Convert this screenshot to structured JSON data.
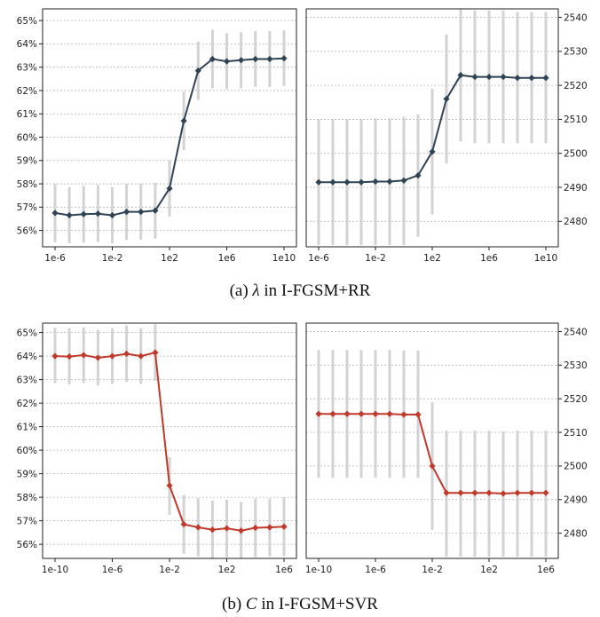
{
  "captions": {
    "a": {
      "prefix": "(a) ",
      "symbol": "λ",
      "suffix": " in I-FGSM+RR"
    },
    "b": {
      "prefix": "(b) ",
      "symbol": "C",
      "suffix": " in I-FGSM+SVR"
    }
  },
  "colors": {
    "series_a": "#2f4354",
    "series_b": "#c0392b",
    "errorbar": "#d3d3d3",
    "grid": "#b5b5b5"
  },
  "chart_data": [
    {
      "id": "a-left",
      "type": "line",
      "title": "",
      "xlabel": "",
      "ylabel": "",
      "x_log10": [
        -6,
        -5,
        -4,
        -3,
        -2,
        -1,
        0,
        1,
        2,
        3,
        4,
        5,
        6,
        7,
        8,
        9,
        10
      ],
      "x_ticks": [
        {
          "v": -6,
          "label": "1e-6"
        },
        {
          "v": -2,
          "label": "1e-2"
        },
        {
          "v": 2,
          "label": "1e2"
        },
        {
          "v": 6,
          "label": "1e6"
        },
        {
          "v": 10,
          "label": "1e10"
        }
      ],
      "y_axis": "left",
      "ylim": [
        55.3,
        65.5
      ],
      "y_ticks": [
        56,
        57,
        58,
        59,
        60,
        61,
        62,
        63,
        64,
        65
      ],
      "y_tick_labels": [
        "56%",
        "57%",
        "58%",
        "59%",
        "60%",
        "61%",
        "62%",
        "63%",
        "64%",
        "65%"
      ],
      "grid": "horizontal-dashed",
      "values": [
        56.75,
        56.65,
        56.7,
        56.72,
        56.65,
        56.8,
        56.8,
        56.85,
        57.8,
        60.7,
        62.85,
        63.35,
        63.25,
        63.3,
        63.35,
        63.35,
        63.38
      ],
      "err_low": [
        55.5,
        55.45,
        55.48,
        55.5,
        55.45,
        55.6,
        55.6,
        55.65,
        56.6,
        59.45,
        61.6,
        62.1,
        62.05,
        62.1,
        62.15,
        62.15,
        62.2
      ],
      "err_high": [
        58.0,
        57.85,
        57.92,
        57.94,
        57.85,
        58.0,
        58.0,
        58.05,
        59.0,
        61.95,
        64.1,
        64.6,
        64.45,
        64.5,
        64.55,
        64.55,
        64.58
      ]
    },
    {
      "id": "a-right",
      "type": "line",
      "title": "",
      "xlabel": "",
      "ylabel": "",
      "x_log10": [
        -6,
        -5,
        -4,
        -3,
        -2,
        -1,
        0,
        1,
        2,
        3,
        4,
        5,
        6,
        7,
        8,
        9,
        10
      ],
      "x_ticks": [
        {
          "v": -6,
          "label": "1e-6"
        },
        {
          "v": -2,
          "label": "1e-2"
        },
        {
          "v": 2,
          "label": "1e2"
        },
        {
          "v": 6,
          "label": "1e6"
        },
        {
          "v": 10,
          "label": "1e10"
        }
      ],
      "y_axis": "right",
      "ylim": [
        2472.5,
        2542.5
      ],
      "y_ticks": [
        2480,
        2490,
        2500,
        2510,
        2520,
        2530,
        2540
      ],
      "y_tick_labels": [
        "2480",
        "2490",
        "2500",
        "2510",
        "2520",
        "2530",
        "2540"
      ],
      "grid": "horizontal-dashed",
      "values": [
        2491.5,
        2491.5,
        2491.5,
        2491.5,
        2491.7,
        2491.7,
        2492.0,
        2493.5,
        2500.5,
        2516.0,
        2523.0,
        2522.5,
        2522.5,
        2522.5,
        2522.2,
        2522.2,
        2522.2
      ],
      "err_low": [
        2473.0,
        2473.0,
        2473.0,
        2473.0,
        2473.0,
        2473.0,
        2473.0,
        2475.5,
        2482.0,
        2497.0,
        2503.5,
        2503.0,
        2503.0,
        2503.0,
        2503.0,
        2503.0,
        2503.0
      ],
      "err_high": [
        2510.0,
        2510.0,
        2510.0,
        2510.0,
        2510.3,
        2510.3,
        2510.8,
        2511.5,
        2519.0,
        2535.0,
        2542.5,
        2542.0,
        2542.0,
        2542.0,
        2541.5,
        2541.5,
        2541.5
      ]
    },
    {
      "id": "b-left",
      "type": "line",
      "title": "",
      "xlabel": "",
      "ylabel": "",
      "x_log10": [
        -10,
        -9,
        -8,
        -7,
        -6,
        -5,
        -4,
        -3,
        -2,
        -1,
        0,
        1,
        2,
        3,
        4,
        5,
        6
      ],
      "x_ticks": [
        {
          "v": -10,
          "label": "1e-10"
        },
        {
          "v": -6,
          "label": "1e-6"
        },
        {
          "v": -2,
          "label": "1e-2"
        },
        {
          "v": 2,
          "label": "1e2"
        },
        {
          "v": 6,
          "label": "1e6"
        }
      ],
      "y_axis": "left",
      "ylim": [
        55.4,
        65.4
      ],
      "y_ticks": [
        56,
        57,
        58,
        59,
        60,
        61,
        62,
        63,
        64,
        65
      ],
      "y_tick_labels": [
        "56%",
        "57%",
        "58%",
        "59%",
        "60%",
        "61%",
        "62%",
        "63%",
        "64%",
        "65%"
      ],
      "grid": "horizontal-dashed",
      "values": [
        64.0,
        63.98,
        64.04,
        63.93,
        64.0,
        64.1,
        64.0,
        64.15,
        58.5,
        56.85,
        56.72,
        56.62,
        56.68,
        56.58,
        56.7,
        56.72,
        56.75
      ],
      "err_low": [
        62.85,
        62.8,
        62.85,
        62.75,
        62.82,
        62.9,
        62.82,
        62.95,
        57.25,
        55.6,
        55.48,
        55.4,
        55.45,
        55.38,
        55.45,
        55.48,
        55.5
      ],
      "err_high": [
        65.2,
        65.2,
        65.22,
        65.12,
        65.18,
        65.3,
        65.18,
        65.35,
        59.7,
        58.1,
        57.95,
        57.85,
        57.9,
        57.8,
        57.95,
        57.95,
        58.0
      ]
    },
    {
      "id": "b-right",
      "type": "line",
      "title": "",
      "xlabel": "",
      "ylabel": "",
      "x_log10": [
        -10,
        -9,
        -8,
        -7,
        -6,
        -5,
        -4,
        -3,
        -2,
        -1,
        0,
        1,
        2,
        3,
        4,
        5,
        6
      ],
      "x_ticks": [
        {
          "v": -10,
          "label": "1e-10"
        },
        {
          "v": -6,
          "label": "1e-6"
        },
        {
          "v": -2,
          "label": "1e-2"
        },
        {
          "v": 2,
          "label": "1e2"
        },
        {
          "v": 6,
          "label": "1e6"
        }
      ],
      "y_axis": "right",
      "ylim": [
        2472.5,
        2542.5
      ],
      "y_ticks": [
        2480,
        2490,
        2500,
        2510,
        2520,
        2530,
        2540
      ],
      "y_tick_labels": [
        "2480",
        "2490",
        "2500",
        "2510",
        "2520",
        "2530",
        "2540"
      ],
      "grid": "horizontal-dashed",
      "values": [
        2515.5,
        2515.5,
        2515.5,
        2515.5,
        2515.5,
        2515.5,
        2515.3,
        2515.3,
        2500.0,
        2492.0,
        2492.0,
        2492.0,
        2492.0,
        2491.8,
        2492.0,
        2492.0,
        2492.0
      ],
      "err_low": [
        2496.5,
        2496.5,
        2496.5,
        2496.5,
        2496.5,
        2496.5,
        2496.5,
        2496.5,
        2481.0,
        2473.0,
        2473.0,
        2473.0,
        2473.0,
        2473.0,
        2473.0,
        2473.0,
        2473.0
      ],
      "err_high": [
        2534.5,
        2534.5,
        2534.5,
        2534.5,
        2534.5,
        2534.5,
        2534.3,
        2534.3,
        2519.0,
        2510.5,
        2510.5,
        2510.5,
        2510.5,
        2510.3,
        2510.5,
        2510.5,
        2510.5
      ]
    }
  ]
}
